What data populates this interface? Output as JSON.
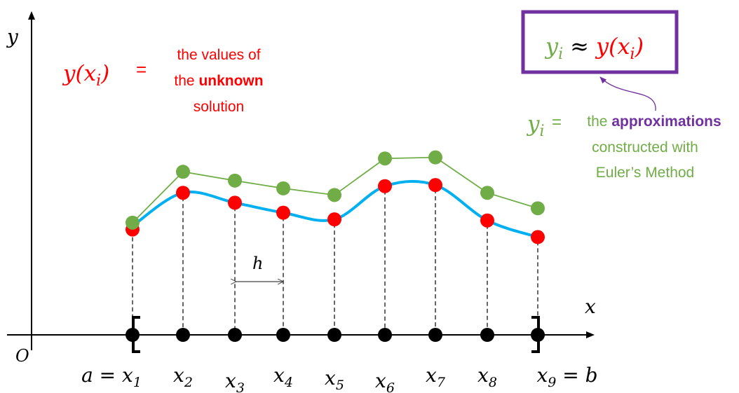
{
  "colors": {
    "red": "#ff0000",
    "green": "#70ad47",
    "blue": "#00b0f0",
    "purple": "#7030a0",
    "black": "#000000",
    "gray": "#444444"
  },
  "axes": {
    "x_label": "x",
    "y_label": "y",
    "origin_label": "O"
  },
  "exact": {
    "lhs": "y(x",
    "lhs_sub": "i",
    "lhs_close": ")",
    "eq": "=",
    "line1": "the values of",
    "line2_pre": "the ",
    "line2_bold": "unknown",
    "line3": "solution"
  },
  "approx": {
    "lhs": "y",
    "lhs_sub": "i",
    "eq": "=",
    "line1_pre": "the ",
    "line1_bold": "approximations",
    "line2": "constructed with",
    "line3": "Euler’s Method"
  },
  "boxed": {
    "left": "y",
    "left_sub": "i",
    "approx_sym": "≈",
    "right": "y(x",
    "right_sub": "i",
    "right_close": ")"
  },
  "step_label": "h",
  "x_labels": [
    {
      "pre": "a = ",
      "base": "x",
      "sub": "1",
      "post": ""
    },
    {
      "pre": "",
      "base": "x",
      "sub": "2",
      "post": ""
    },
    {
      "pre": "",
      "base": "x",
      "sub": "3",
      "post": ""
    },
    {
      "pre": "",
      "base": "x",
      "sub": "4",
      "post": ""
    },
    {
      "pre": "",
      "base": "x",
      "sub": "5",
      "post": ""
    },
    {
      "pre": "",
      "base": "x",
      "sub": "6",
      "post": ""
    },
    {
      "pre": "",
      "base": "x",
      "sub": "7",
      "post": ""
    },
    {
      "pre": "",
      "base": "x",
      "sub": "8",
      "post": ""
    },
    {
      "pre": "",
      "base": "x",
      "sub": "9",
      "post": " = b"
    }
  ],
  "nodes": {
    "exact_values": [
      0.3,
      0.6,
      0.51,
      0.42,
      0.36,
      0.66,
      0.67,
      0.35,
      0.2
    ],
    "euler_values": [
      0.33,
      0.79,
      0.71,
      0.64,
      0.58,
      0.91,
      0.92,
      0.6,
      0.46
    ]
  }
}
